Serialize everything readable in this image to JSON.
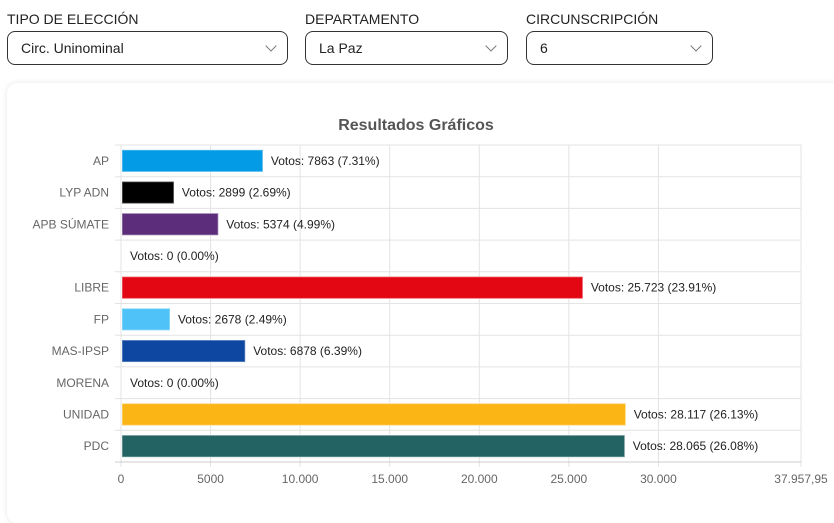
{
  "filters": [
    {
      "label": "TIPO DE ELECCIÓN",
      "value": "Circ. Uninominal"
    },
    {
      "label": "DEPARTAMENTO",
      "value": "La Paz"
    },
    {
      "label": "CIRCUNSCRIPCIÓN",
      "value": "6"
    }
  ],
  "chart_data": {
    "type": "bar",
    "orientation": "horizontal",
    "title": "Resultados Gráficos",
    "categories": [
      "AP",
      "LYP ADN",
      "APB SÚMATE",
      "",
      "LIBRE",
      "FP",
      "MAS-IPSP",
      "MORENA",
      "UNIDAD",
      "PDC"
    ],
    "values": [
      7863,
      2899,
      5374,
      0,
      25723,
      2678,
      6878,
      0,
      28117,
      28065
    ],
    "data_labels": [
      "Votos: 7863 (7.31%)",
      "Votos: 2899 (2.69%)",
      "Votos: 5374 (4.99%)",
      "Votos: 0 (0.00%)",
      "Votos: 25.723 (23.91%)",
      "Votos: 2678 (2.49%)",
      "Votos: 6878 (6.39%)",
      "Votos: 0 (0.00%)",
      "Votos: 28.117 (26.13%)",
      "Votos: 28.065 (26.08%)"
    ],
    "colors": [
      "#039be5",
      "#000000",
      "#5c2d7b",
      "#cccccc",
      "#e30613",
      "#4fc3f7",
      "#0d47a1",
      "#8b0000",
      "#fbb515",
      "#236363"
    ],
    "xlim": [
      0,
      37957.95
    ],
    "xticks": [
      0,
      5000,
      10000,
      15000,
      20000,
      25000,
      30000,
      37957.95
    ],
    "xtick_labels": [
      "0",
      "5000",
      "10.000",
      "15.000",
      "20.000",
      "25.000",
      "30.000",
      "37.957,95"
    ],
    "grid": true,
    "xlabel": "",
    "ylabel": ""
  }
}
